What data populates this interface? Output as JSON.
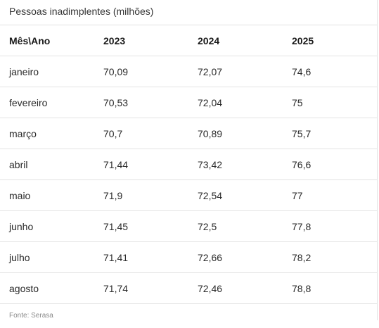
{
  "title": "Pessoas inadimplentes (milhões)",
  "headers": [
    "Mês\\Ano",
    "2023",
    "2024",
    "2025"
  ],
  "rows": [
    [
      "janeiro",
      "70,09",
      "72,07",
      "74,6"
    ],
    [
      "fevereiro",
      "70,53",
      "72,04",
      "75"
    ],
    [
      "março",
      "70,7",
      "70,89",
      "75,7"
    ],
    [
      "abril",
      "71,44",
      "73,42",
      "76,6"
    ],
    [
      "maio",
      "71,9",
      "72,54",
      "77"
    ],
    [
      "junho",
      "71,45",
      "72,5",
      "77,8"
    ],
    [
      "julho",
      "71,41",
      "72,66",
      "78,2"
    ],
    [
      "agosto",
      "71,74",
      "72,46",
      "78,8"
    ]
  ],
  "source": "Fonte: Serasa",
  "chart_data": {
    "type": "table",
    "title": "Pessoas inadimplentes (milhões)",
    "columns": [
      "Mês\\Ano",
      "2023",
      "2024",
      "2025"
    ],
    "categories": [
      "janeiro",
      "fevereiro",
      "março",
      "abril",
      "maio",
      "junho",
      "julho",
      "agosto"
    ],
    "series": [
      {
        "name": "2023",
        "values": [
          70.09,
          70.53,
          70.7,
          71.44,
          71.9,
          71.45,
          71.41,
          71.74
        ]
      },
      {
        "name": "2024",
        "values": [
          72.07,
          72.04,
          70.89,
          73.42,
          72.54,
          72.5,
          72.66,
          72.46
        ]
      },
      {
        "name": "2025",
        "values": [
          74.6,
          75,
          75.7,
          76.6,
          77,
          77.8,
          78.2,
          78.8
        ]
      }
    ]
  }
}
